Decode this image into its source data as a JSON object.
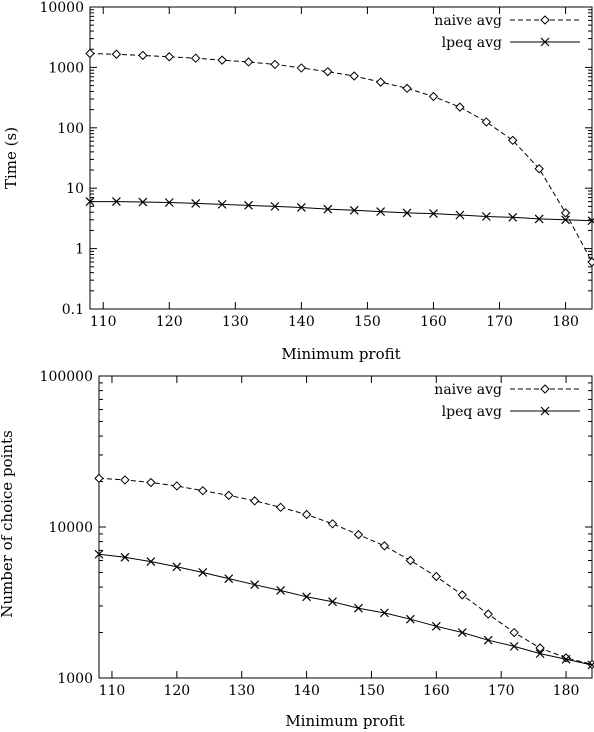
{
  "chart_data": [
    {
      "type": "line",
      "title": "",
      "xlabel": "Minimum profit",
      "ylabel": "Time (s)",
      "xlim": [
        108,
        184
      ],
      "ylim": [
        0.1,
        10000
      ],
      "yscale": "log",
      "grid": false,
      "legend_position": "top-right",
      "xticks": [
        110,
        120,
        130,
        140,
        150,
        160,
        170,
        180
      ],
      "xtick_labels": [
        "110",
        "120",
        "130",
        "140",
        "150",
        "160",
        "170",
        "180"
      ],
      "yticks": [
        0.1,
        1,
        10,
        100,
        1000,
        10000
      ],
      "ytick_labels": [
        "0.1",
        "1",
        "10",
        "100",
        "1000",
        "10000"
      ],
      "series": [
        {
          "name": "naive avg",
          "style": "dashed",
          "marker": "diamond",
          "x": [
            108,
            112,
            116,
            120,
            124,
            128,
            132,
            136,
            140,
            144,
            148,
            152,
            156,
            160,
            164,
            168,
            172,
            176,
            180,
            184
          ],
          "y": [
            1700,
            1650,
            1580,
            1500,
            1420,
            1320,
            1230,
            1120,
            980,
            850,
            720,
            570,
            450,
            330,
            220,
            125,
            62,
            21,
            3.9,
            0.6
          ]
        },
        {
          "name": "lpeq avg",
          "style": "solid",
          "marker": "x",
          "x": [
            108,
            112,
            116,
            120,
            124,
            128,
            132,
            136,
            140,
            144,
            148,
            152,
            156,
            160,
            164,
            168,
            172,
            176,
            180,
            184
          ],
          "y": [
            6.0,
            6.0,
            5.9,
            5.8,
            5.6,
            5.4,
            5.2,
            5.0,
            4.8,
            4.5,
            4.3,
            4.1,
            3.9,
            3.8,
            3.6,
            3.4,
            3.3,
            3.1,
            3.0,
            2.9
          ]
        }
      ]
    },
    {
      "type": "line",
      "title": "",
      "xlabel": "Minimum profit",
      "ylabel": "Number of choice points",
      "xlim": [
        108,
        184
      ],
      "ylim": [
        1000,
        100000
      ],
      "yscale": "log",
      "grid": false,
      "legend_position": "top-right",
      "xticks": [
        110,
        120,
        130,
        140,
        150,
        160,
        170,
        180
      ],
      "xtick_labels": [
        "110",
        "120",
        "130",
        "140",
        "150",
        "160",
        "170",
        "180"
      ],
      "yticks": [
        1000,
        10000,
        100000
      ],
      "ytick_labels": [
        "1000",
        "10000",
        "100000"
      ],
      "series": [
        {
          "name": "naive avg",
          "style": "dashed",
          "marker": "diamond",
          "x": [
            108,
            112,
            116,
            120,
            124,
            128,
            132,
            136,
            140,
            144,
            148,
            152,
            156,
            160,
            164,
            168,
            172,
            176,
            180,
            184
          ],
          "y": [
            21000,
            20500,
            19700,
            18700,
            17400,
            16200,
            14900,
            13500,
            12100,
            10500,
            8900,
            7500,
            6000,
            4700,
            3550,
            2650,
            2000,
            1580,
            1360,
            1230
          ]
        },
        {
          "name": "lpeq avg",
          "style": "solid",
          "marker": "x",
          "x": [
            108,
            112,
            116,
            120,
            124,
            128,
            132,
            136,
            140,
            144,
            148,
            152,
            156,
            160,
            164,
            168,
            172,
            176,
            180,
            184
          ],
          "y": [
            6600,
            6300,
            5900,
            5450,
            5000,
            4550,
            4150,
            3800,
            3450,
            3200,
            2900,
            2700,
            2450,
            2200,
            2000,
            1780,
            1620,
            1450,
            1330,
            1220
          ]
        }
      ]
    }
  ]
}
